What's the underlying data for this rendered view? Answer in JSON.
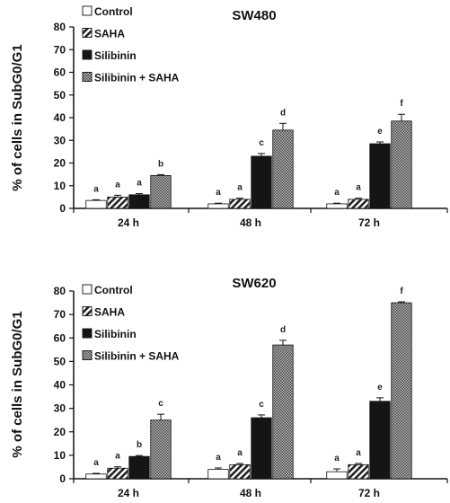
{
  "chart_data": [
    {
      "type": "bar",
      "title": "SW480",
      "ylabel": "% of cells in SubG0/G1",
      "ylim": [
        0,
        80
      ],
      "yticks": [
        0,
        10,
        20,
        30,
        40,
        50,
        60,
        70,
        80
      ],
      "categories": [
        "24 h",
        "48 h",
        "72 h"
      ],
      "legend_position": "top-left",
      "series": [
        {
          "name": "Control",
          "pattern": "white",
          "values": [
            3.5,
            2,
            2
          ],
          "errors": [
            0.3,
            0.3,
            0.3
          ],
          "labels": [
            "a",
            "a",
            "a"
          ]
        },
        {
          "name": "SAHA",
          "pattern": "diagonal-stripes",
          "values": [
            5,
            4,
            4
          ],
          "errors": [
            0.8,
            0.5,
            0.5
          ],
          "labels": [
            "a",
            "a",
            "a"
          ]
        },
        {
          "name": "Silibinin",
          "pattern": "black",
          "values": [
            6,
            23,
            28.5
          ],
          "errors": [
            0.5,
            1.2,
            0.8
          ],
          "labels": [
            "a",
            "c",
            "e"
          ]
        },
        {
          "name": "Silibinin + SAHA",
          "pattern": "checkered",
          "values": [
            14.5,
            34.5,
            38.5
          ],
          "errors": [
            0.4,
            3,
            3
          ],
          "labels": [
            "b",
            "d",
            "f"
          ]
        }
      ]
    },
    {
      "type": "bar",
      "title": "SW620",
      "ylabel": "% of cells in SubG0/G1",
      "ylim": [
        0,
        80
      ],
      "yticks": [
        0,
        10,
        20,
        30,
        40,
        50,
        60,
        70,
        80
      ],
      "categories": [
        "24 h",
        "48 h",
        "72 h"
      ],
      "legend_position": "top-left",
      "series": [
        {
          "name": "Control",
          "pattern": "white",
          "values": [
            2,
            4,
            3
          ],
          "errors": [
            0.3,
            0.6,
            1.2
          ],
          "labels": [
            "a",
            "a",
            "a"
          ]
        },
        {
          "name": "SAHA",
          "pattern": "diagonal-stripes",
          "values": [
            4.5,
            6,
            6
          ],
          "errors": [
            0.6,
            0.5,
            0.5
          ],
          "labels": [
            "a",
            "a",
            "a"
          ]
        },
        {
          "name": "Silibinin",
          "pattern": "black",
          "values": [
            9.5,
            26,
            33
          ],
          "errors": [
            0.4,
            1.2,
            1.5
          ],
          "labels": [
            "b",
            "c",
            "e"
          ]
        },
        {
          "name": "Silibinin + SAHA",
          "pattern": "checkered",
          "values": [
            25,
            57,
            75
          ],
          "errors": [
            2.5,
            2,
            0.4
          ],
          "labels": [
            "c",
            "d",
            "f"
          ]
        }
      ]
    }
  ],
  "colors": {
    "axis": "#111111",
    "black_bar": "#151515",
    "stripe": "#222222",
    "checker_dark": "#444444",
    "checker_light": "#bcbcbc"
  }
}
